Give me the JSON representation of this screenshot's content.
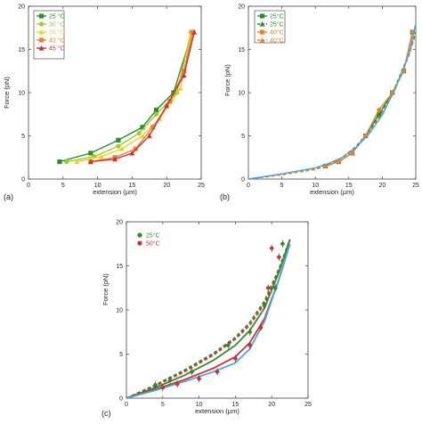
{
  "chart_data": [
    {
      "type": "line",
      "panel_label": "(a)",
      "xlabel": "extension (µm)",
      "ylabel": "Force (pN)",
      "xlim": [
        0,
        25
      ],
      "ylim": [
        0,
        20
      ],
      "xticks": [
        0,
        5,
        10,
        15,
        20,
        25
      ],
      "yticks": [
        0,
        5,
        10,
        15,
        20
      ],
      "grid": false,
      "legend_position": "top-left",
      "legend_boxed": true,
      "series": [
        {
          "name": "25 °C",
          "color": "#2e8b2e",
          "marker": "square",
          "x": [
            4.5,
            9,
            13,
            16.5,
            18.5,
            21,
            23.7
          ],
          "y": [
            2,
            3,
            4.5,
            6,
            8,
            10,
            17
          ]
        },
        {
          "name": "30 °C",
          "color": "#9acd32",
          "marker": "circle",
          "x": [
            5.5,
            9.5,
            13,
            16,
            18.5,
            21.5,
            23.5
          ],
          "y": [
            2,
            2.6,
            3.8,
            5.3,
            7.5,
            10,
            17
          ]
        },
        {
          "name": "35 °C",
          "color": "#f0d020",
          "marker": "triangle",
          "x": [
            7,
            10.5,
            13.5,
            16.5,
            19,
            22,
            23.6
          ],
          "y": [
            2,
            2.6,
            3.5,
            5,
            7,
            10.5,
            17
          ]
        },
        {
          "name": "42 °C",
          "color": "#f08030",
          "marker": "square",
          "x": [
            9,
            12.5,
            15.5,
            18,
            20.5,
            22.5,
            23.8
          ],
          "y": [
            2,
            2.5,
            3.5,
            6,
            9,
            12.5,
            17
          ]
        },
        {
          "name": "45 °C",
          "color": "#d03030",
          "marker": "triangle",
          "x": [
            9,
            12.5,
            15,
            17.5,
            20,
            22.5,
            24
          ],
          "y": [
            2,
            2.3,
            3,
            5,
            8.5,
            12,
            17
          ]
        }
      ]
    },
    {
      "type": "line",
      "panel_label": "(b)",
      "xlabel": "extension (µm)",
      "ylabel": "Force (pN)",
      "xlim": [
        0,
        25
      ],
      "ylim": [
        0,
        20
      ],
      "xticks": [
        0,
        5,
        10,
        15,
        20,
        25
      ],
      "yticks": [
        0,
        5,
        10,
        15,
        20
      ],
      "grid": false,
      "legend_position": "top-left",
      "legend_boxed": true,
      "legend": [
        {
          "name": "25°C",
          "color": "#2e8b2e",
          "dash": false
        },
        {
          "name": "25°C",
          "color": "#2e8b2e",
          "dash": true
        },
        {
          "name": "40°C",
          "color": "#f08030",
          "dash": false
        },
        {
          "name": "40°C",
          "color": "#f08030",
          "dash": true
        }
      ],
      "series": [
        {
          "color": "#2e8b2e",
          "dash": false,
          "marker": "square",
          "x": [
            11.5,
            13.5,
            15.5,
            17.5,
            19.5,
            21.5,
            23.2,
            24.5
          ],
          "y": [
            1.5,
            2,
            3,
            5,
            7.5,
            10,
            12.5,
            17
          ]
        },
        {
          "color": "#2e8b2e",
          "dash": true,
          "marker": "none",
          "x": [
            0,
            5,
            10,
            12,
            14,
            16,
            18,
            20,
            22,
            24,
            25
          ],
          "y": [
            0,
            0.5,
            1.2,
            1.7,
            2.5,
            3.7,
            5.5,
            7.8,
            10.8,
            14.5,
            17
          ]
        },
        {
          "color": "#f08030",
          "dash": false,
          "marker": "diamond",
          "x": [
            11.5,
            13.5,
            15.5,
            17.5,
            19.5,
            21.5,
            23.2,
            24.5
          ],
          "y": [
            1.5,
            2,
            3,
            5,
            8,
            10,
            12.5,
            17
          ]
        },
        {
          "color": "#f08030",
          "dash": true,
          "marker": "none",
          "x": [
            0,
            5,
            10,
            12,
            14,
            16,
            18,
            20,
            22,
            24,
            25
          ],
          "y": [
            0,
            0.5,
            1.1,
            1.6,
            2.3,
            3.5,
            5.3,
            7.6,
            10.6,
            14.3,
            16.8
          ]
        },
        {
          "color": "#4aa3e0",
          "dash": false,
          "marker": "none",
          "x": [
            0,
            5,
            10,
            12,
            14,
            16,
            18,
            20,
            22,
            24,
            25
          ],
          "y": [
            0,
            0.6,
            1.3,
            1.8,
            2.5,
            3.6,
            5.2,
            7.4,
            10.5,
            14.5,
            18
          ]
        }
      ]
    },
    {
      "type": "scatter",
      "panel_label": "(c)",
      "xlabel": "extension (µm)",
      "ylabel": "Force (pN)",
      "xlim": [
        0,
        25
      ],
      "ylim": [
        0,
        20
      ],
      "xticks": [
        0,
        5,
        10,
        15,
        20,
        25
      ],
      "yticks": [
        0,
        5,
        10,
        15,
        20
      ],
      "grid": false,
      "legend_position": "top-left",
      "legend_boxed": false,
      "legend": [
        {
          "name": "25°C",
          "color": "#2e8b2e"
        },
        {
          "name": "50°C",
          "color": "#d03030"
        }
      ],
      "points": [
        {
          "color": "#2e8b2e",
          "x": [
            4,
            6,
            9,
            14,
            17,
            19,
            20.5,
            21.5
          ],
          "y": [
            1.5,
            2,
            3,
            6,
            7.5,
            10.5,
            12.5,
            17.5
          ]
        },
        {
          "color": "#d03030",
          "x": [
            5,
            7,
            10,
            12.5,
            15,
            17,
            18.5,
            19.5,
            20,
            21
          ],
          "y": [
            1.2,
            1.6,
            2.2,
            3,
            4.5,
            6,
            8,
            12.5,
            17,
            16
          ]
        }
      ],
      "curves": [
        {
          "color": "#2e8b2e",
          "dash": true,
          "x": [
            0,
            4,
            8,
            12,
            15,
            17,
            19,
            21,
            22.5
          ],
          "y": [
            0,
            1.5,
            3.2,
            5.1,
            6.9,
            8.6,
            11,
            14.7,
            18
          ]
        },
        {
          "color": "#d03030",
          "dash": true,
          "x": [
            0,
            4,
            8,
            12,
            15,
            17,
            19,
            21,
            22.5
          ],
          "y": [
            0,
            1.4,
            3,
            4.9,
            6.7,
            8.3,
            10.7,
            14.4,
            17.8
          ]
        },
        {
          "color": "#2e8b2e",
          "dash": false,
          "x": [
            0,
            4,
            8,
            12,
            15,
            17,
            19,
            21,
            22.5
          ],
          "y": [
            0,
            1.2,
            2.6,
            4.3,
            6,
            7.7,
            10.2,
            14.3,
            18
          ]
        },
        {
          "color": "#d03030",
          "dash": false,
          "x": [
            0,
            4,
            8,
            12,
            15,
            17,
            19,
            21,
            22.5
          ],
          "y": [
            0,
            1,
            2.1,
            3.4,
            4.7,
            6.3,
            9,
            13.5,
            17.5
          ]
        },
        {
          "color": "#4aa3e0",
          "dash": false,
          "x": [
            0,
            4,
            8,
            12,
            15,
            17,
            19,
            21,
            22.5
          ],
          "y": [
            0,
            0.9,
            1.9,
            3,
            4,
            5.6,
            8.7,
            13.5,
            17.5
          ]
        }
      ]
    }
  ]
}
